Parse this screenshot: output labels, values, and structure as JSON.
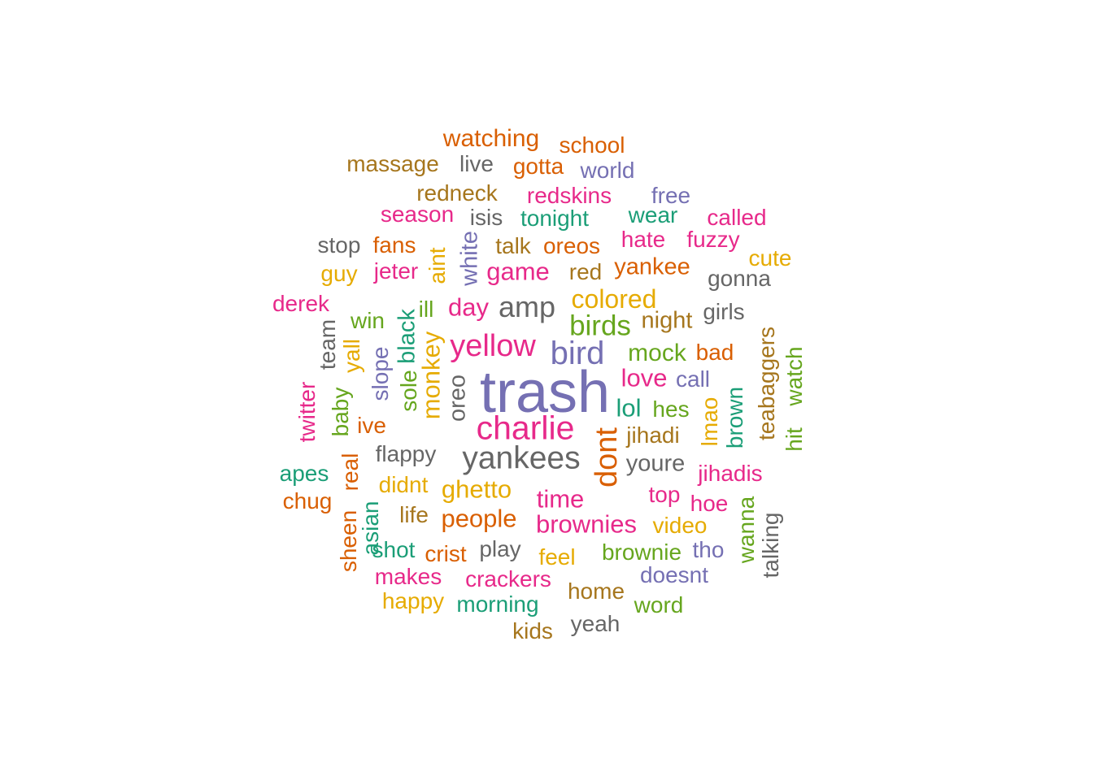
{
  "palette": {
    "teal": "#1b9e77",
    "orange": "#d95f02",
    "purple": "#7570b3",
    "pink": "#e7298a",
    "green": "#66a61e",
    "gold": "#e6ab02",
    "brown": "#a6761d",
    "gray": "#666666"
  },
  "words": [
    {
      "text": "trash",
      "color": "purple",
      "weight": 10
    },
    {
      "text": "charlie",
      "color": "pink",
      "weight": 7
    },
    {
      "text": "yankees",
      "color": "gray",
      "weight": 6.5
    },
    {
      "text": "bird",
      "color": "purple",
      "weight": 6.5
    },
    {
      "text": "yellow",
      "color": "pink",
      "weight": 6.5
    },
    {
      "text": "dont",
      "color": "orange",
      "weight": 6
    },
    {
      "text": "amp",
      "color": "gray",
      "weight": 5.5
    },
    {
      "text": "birds",
      "color": "green",
      "weight": 5.5
    },
    {
      "text": "colored",
      "color": "gold",
      "weight": 5
    },
    {
      "text": "game",
      "color": "pink",
      "weight": 5
    },
    {
      "text": "day",
      "color": "pink",
      "weight": 5
    },
    {
      "text": "people",
      "color": "orange",
      "weight": 5
    },
    {
      "text": "ghetto",
      "color": "gold",
      "weight": 5
    },
    {
      "text": "monkey",
      "color": "gold",
      "weight": 5
    },
    {
      "text": "time",
      "color": "pink",
      "weight": 5
    },
    {
      "text": "brownies",
      "color": "pink",
      "weight": 4.5
    },
    {
      "text": "love",
      "color": "pink",
      "weight": 4.5
    },
    {
      "text": "lol",
      "color": "teal",
      "weight": 4.5
    },
    {
      "text": "watching",
      "color": "orange",
      "weight": 4.5
    },
    {
      "text": "mock",
      "color": "green",
      "weight": 4.5
    },
    {
      "text": "oreo",
      "color": "gray",
      "weight": 4.5
    },
    {
      "text": "black",
      "color": "teal",
      "weight": 4.5
    },
    {
      "text": "white",
      "color": "purple",
      "weight": 4.5
    },
    {
      "text": "youre",
      "color": "gray",
      "weight": 4.5
    },
    {
      "text": "night",
      "color": "brown",
      "weight": 4.5
    },
    {
      "text": "yankee",
      "color": "orange",
      "weight": 4.5
    },
    {
      "text": "school",
      "color": "orange",
      "weight": 4
    },
    {
      "text": "massage",
      "color": "brown",
      "weight": 4
    },
    {
      "text": "gotta",
      "color": "orange",
      "weight": 4
    },
    {
      "text": "world",
      "color": "purple",
      "weight": 4
    },
    {
      "text": "redskins",
      "color": "pink",
      "weight": 4
    },
    {
      "text": "redneck",
      "color": "brown",
      "weight": 4
    },
    {
      "text": "free",
      "color": "purple",
      "weight": 4
    },
    {
      "text": "season",
      "color": "pink",
      "weight": 4
    },
    {
      "text": "isis",
      "color": "gray",
      "weight": 4
    },
    {
      "text": "tonight",
      "color": "teal",
      "weight": 4
    },
    {
      "text": "wear",
      "color": "teal",
      "weight": 4
    },
    {
      "text": "called",
      "color": "pink",
      "weight": 4
    },
    {
      "text": "stop",
      "color": "gray",
      "weight": 4
    },
    {
      "text": "fans",
      "color": "orange",
      "weight": 4
    },
    {
      "text": "talk",
      "color": "brown",
      "weight": 4
    },
    {
      "text": "oreos",
      "color": "orange",
      "weight": 4
    },
    {
      "text": "hate",
      "color": "pink",
      "weight": 4
    },
    {
      "text": "fuzzy",
      "color": "pink",
      "weight": 4
    },
    {
      "text": "cute",
      "color": "gold",
      "weight": 4
    },
    {
      "text": "guy",
      "color": "gold",
      "weight": 4
    },
    {
      "text": "jeter",
      "color": "pink",
      "weight": 4
    },
    {
      "text": "aint",
      "color": "gold",
      "weight": 4
    },
    {
      "text": "red",
      "color": "brown",
      "weight": 4
    },
    {
      "text": "gonna",
      "color": "gray",
      "weight": 4
    },
    {
      "text": "derek",
      "color": "pink",
      "weight": 4
    },
    {
      "text": "win",
      "color": "green",
      "weight": 4
    },
    {
      "text": "ill",
      "color": "green",
      "weight": 4
    },
    {
      "text": "girls",
      "color": "gray",
      "weight": 4
    },
    {
      "text": "team",
      "color": "gray",
      "weight": 4
    },
    {
      "text": "yall",
      "color": "gold",
      "weight": 4
    },
    {
      "text": "slope",
      "color": "purple",
      "weight": 4
    },
    {
      "text": "sole",
      "color": "green",
      "weight": 4
    },
    {
      "text": "bad",
      "color": "orange",
      "weight": 4
    },
    {
      "text": "teabaggers",
      "color": "brown",
      "weight": 4
    },
    {
      "text": "watch",
      "color": "green",
      "weight": 4
    },
    {
      "text": "call",
      "color": "purple",
      "weight": 4
    },
    {
      "text": "twitter",
      "color": "pink",
      "weight": 4
    },
    {
      "text": "baby",
      "color": "green",
      "weight": 4
    },
    {
      "text": "ive",
      "color": "orange",
      "weight": 4
    },
    {
      "text": "hes",
      "color": "green",
      "weight": 4
    },
    {
      "text": "lmao",
      "color": "gold",
      "weight": 4
    },
    {
      "text": "brown",
      "color": "teal",
      "weight": 4
    },
    {
      "text": "jihadi",
      "color": "brown",
      "weight": 4
    },
    {
      "text": "hit",
      "color": "green",
      "weight": 4
    },
    {
      "text": "flappy",
      "color": "gray",
      "weight": 4
    },
    {
      "text": "apes",
      "color": "teal",
      "weight": 4
    },
    {
      "text": "real",
      "color": "orange",
      "weight": 4
    },
    {
      "text": "didnt",
      "color": "gold",
      "weight": 4
    },
    {
      "text": "jihadis",
      "color": "pink",
      "weight": 4
    },
    {
      "text": "chug",
      "color": "orange",
      "weight": 4
    },
    {
      "text": "top",
      "color": "pink",
      "weight": 4
    },
    {
      "text": "hoe",
      "color": "pink",
      "weight": 4
    },
    {
      "text": "wanna",
      "color": "green",
      "weight": 4
    },
    {
      "text": "talking",
      "color": "gray",
      "weight": 4
    },
    {
      "text": "life",
      "color": "brown",
      "weight": 4
    },
    {
      "text": "video",
      "color": "gold",
      "weight": 4
    },
    {
      "text": "sheen",
      "color": "orange",
      "weight": 4
    },
    {
      "text": "asian",
      "color": "teal",
      "weight": 4
    },
    {
      "text": "shot",
      "color": "teal",
      "weight": 4
    },
    {
      "text": "crist",
      "color": "orange",
      "weight": 4
    },
    {
      "text": "play",
      "color": "gray",
      "weight": 4
    },
    {
      "text": "feel",
      "color": "gold",
      "weight": 4
    },
    {
      "text": "brownie",
      "color": "green",
      "weight": 4
    },
    {
      "text": "tho",
      "color": "purple",
      "weight": 4
    },
    {
      "text": "makes",
      "color": "pink",
      "weight": 4
    },
    {
      "text": "crackers",
      "color": "pink",
      "weight": 4
    },
    {
      "text": "doesnt",
      "color": "purple",
      "weight": 4
    },
    {
      "text": "home",
      "color": "brown",
      "weight": 4
    },
    {
      "text": "happy",
      "color": "gold",
      "weight": 4
    },
    {
      "text": "morning",
      "color": "teal",
      "weight": 4
    },
    {
      "text": "word",
      "color": "green",
      "weight": 4
    },
    {
      "text": "kids",
      "color": "brown",
      "weight": 4
    },
    {
      "text": "yeah",
      "color": "gray",
      "weight": 4
    },
    {
      "text": "live",
      "color": "gray",
      "weight": 4
    }
  ]
}
